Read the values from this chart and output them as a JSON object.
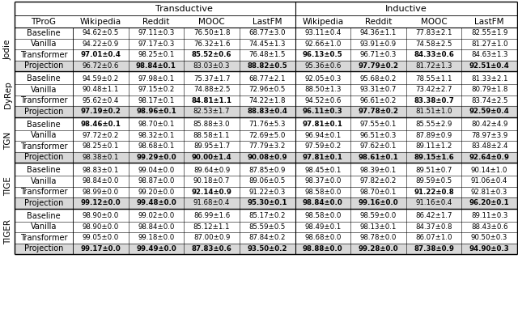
{
  "col_groups": [
    "Transductive",
    "Inductive"
  ],
  "header_row": [
    "TProG",
    "Wikipedia",
    "Reddit",
    "MOOC",
    "LastFM",
    "Wikipedia",
    "Reddit",
    "MOOC",
    "LastFM"
  ],
  "row_groups": [
    "Jodie",
    "DyRep",
    "TGN",
    "TIGE",
    "TIGER"
  ],
  "row_labels": [
    "Baseline",
    "Vanilla",
    "Transformer",
    "Projection"
  ],
  "cells": [
    [
      [
        "94.62±0.5",
        "97.11±0.3",
        "76.50±1.8",
        "68.77±3.0",
        "93.11±0.4",
        "94.36±1.1",
        "77.83±2.1",
        "82.55±1.9"
      ],
      [
        "94.22±0.9",
        "97.17±0.3",
        "76.32±1.6",
        "74.45±1.3",
        "92.66±1.0",
        "93.91±0.9",
        "74.58±2.5",
        "81.27±1.0"
      ],
      [
        "97.01±0.4",
        "98.25±0.1",
        "85.52±0.6",
        "76.48±1.5",
        "96.13±0.5",
        "96.71±0.3",
        "84.33±0.6",
        "84.63±1.3"
      ],
      [
        "96.72±0.6",
        "98.84±0.1",
        "83.03±0.3",
        "88.82±0.5",
        "95.36±0.6",
        "97.79±0.2",
        "81.72±1.3",
        "92.51±0.4"
      ]
    ],
    [
      [
        "94.59±0.2",
        "97.98±0.1",
        "75.37±1.7",
        "68.77±2.1",
        "92.05±0.3",
        "95.68±0.2",
        "78.55±1.1",
        "81.33±2.1"
      ],
      [
        "90.48±1.1",
        "97.15±0.2",
        "74.88±2.5",
        "72.96±0.5",
        "88.50±1.3",
        "93.31±0.7",
        "73.42±2.7",
        "80.79±1.8"
      ],
      [
        "95.62±0.4",
        "98.17±0.1",
        "84.81±1.1",
        "74.22±1.8",
        "94.52±0.6",
        "96.61±0.2",
        "83.38±0.7",
        "83.74±2.5"
      ],
      [
        "97.19±0.2",
        "98.96±0.1",
        "82.53±1.7",
        "88.83±0.4",
        "96.11±0.3",
        "97.78±0.2",
        "81.51±1.0",
        "92.59±0.4"
      ]
    ],
    [
      [
        "98.46±0.1",
        "98.70±0.1",
        "85.88±3.0",
        "71.76±5.3",
        "97.81±0.1",
        "97.55±0.1",
        "85.55±2.9",
        "80.42±4.9"
      ],
      [
        "97.72±0.2",
        "98.32±0.1",
        "88.58±1.1",
        "72.69±5.0",
        "96.94±0.1",
        "96.51±0.3",
        "87.89±0.9",
        "78.97±3.9"
      ],
      [
        "98.25±0.1",
        "98.68±0.1",
        "89.95±1.7",
        "77.79±3.2",
        "97.59±0.2",
        "97.62±0.1",
        "89.11±1.2",
        "83.48±2.4"
      ],
      [
        "98.38±0.1",
        "99.29±0.0",
        "90.00±1.4",
        "90.08±0.9",
        "97.81±0.1",
        "98.61±0.1",
        "89.15±1.6",
        "92.64±0.9"
      ]
    ],
    [
      [
        "98.83±0.1",
        "99.04±0.0",
        "89.64±0.9",
        "87.85±0.9",
        "98.45±0.1",
        "98.39±0.1",
        "89.51±0.7",
        "90.14±1.0"
      ],
      [
        "98.84±0.0",
        "98.87±0.0",
        "90.18±0.7",
        "89.06±0.5",
        "98.37±0.0",
        "97.82±0.2",
        "89.59±0.5",
        "91.06±0.4"
      ],
      [
        "98.99±0.0",
        "99.20±0.0",
        "92.14±0.9",
        "91.22±0.3",
        "98.58±0.0",
        "98.70±0.1",
        "91.22±0.8",
        "92.81±0.3"
      ],
      [
        "99.12±0.0",
        "99.48±0.0",
        "91.68±0.4",
        "95.30±0.1",
        "98.84±0.0",
        "99.16±0.0",
        "91.16±0.4",
        "96.20±0.1"
      ]
    ],
    [
      [
        "98.90±0.0",
        "99.02±0.0",
        "86.99±1.6",
        "85.17±0.2",
        "98.58±0.0",
        "98.59±0.0",
        "86.42±1.7",
        "89.11±0.3"
      ],
      [
        "98.90±0.0",
        "98.84±0.0",
        "85.12±1.1",
        "85.59±0.5",
        "98.49±0.1",
        "98.13±0.1",
        "84.37±0.8",
        "88.43±0.6"
      ],
      [
        "99.05±0.0",
        "99.18±0.0",
        "87.00±0.9",
        "87.84±0.2",
        "98.68±0.0",
        "98.78±0.0",
        "86.07±1.0",
        "90.50±0.3"
      ],
      [
        "99.17±0.0",
        "99.49±0.0",
        "87.83±0.6",
        "93.50±0.2",
        "98.88±0.0",
        "99.28±0.0",
        "87.38±0.9",
        "94.90±0.3"
      ]
    ]
  ],
  "bold_cells": [
    [
      [
        false,
        false,
        false,
        false,
        false,
        false,
        false,
        false
      ],
      [
        false,
        false,
        false,
        false,
        false,
        false,
        false,
        false
      ],
      [
        true,
        false,
        true,
        false,
        true,
        false,
        true,
        false
      ],
      [
        false,
        true,
        false,
        true,
        false,
        true,
        false,
        true
      ]
    ],
    [
      [
        false,
        false,
        false,
        false,
        false,
        false,
        false,
        false
      ],
      [
        false,
        false,
        false,
        false,
        false,
        false,
        false,
        false
      ],
      [
        false,
        false,
        true,
        false,
        false,
        false,
        true,
        false
      ],
      [
        true,
        true,
        false,
        true,
        true,
        true,
        false,
        true
      ]
    ],
    [
      [
        true,
        false,
        false,
        false,
        true,
        false,
        false,
        false
      ],
      [
        false,
        false,
        false,
        false,
        false,
        false,
        false,
        false
      ],
      [
        false,
        false,
        false,
        false,
        false,
        false,
        false,
        false
      ],
      [
        false,
        true,
        true,
        true,
        true,
        true,
        true,
        true
      ]
    ],
    [
      [
        false,
        false,
        false,
        false,
        false,
        false,
        false,
        false
      ],
      [
        false,
        false,
        false,
        false,
        false,
        false,
        false,
        false
      ],
      [
        false,
        false,
        true,
        false,
        false,
        false,
        true,
        false
      ],
      [
        true,
        true,
        false,
        true,
        true,
        true,
        false,
        true
      ]
    ],
    [
      [
        false,
        false,
        false,
        false,
        false,
        false,
        false,
        false
      ],
      [
        false,
        false,
        false,
        false,
        false,
        false,
        false,
        false
      ],
      [
        false,
        false,
        false,
        false,
        false,
        false,
        false,
        false
      ],
      [
        true,
        true,
        true,
        true,
        true,
        true,
        true,
        true
      ]
    ]
  ],
  "font_size": 6.2,
  "header_font_size": 8.0,
  "col_header_font_size": 7.5,
  "group_font_size": 7.5,
  "row_label_font_size": 7.0
}
